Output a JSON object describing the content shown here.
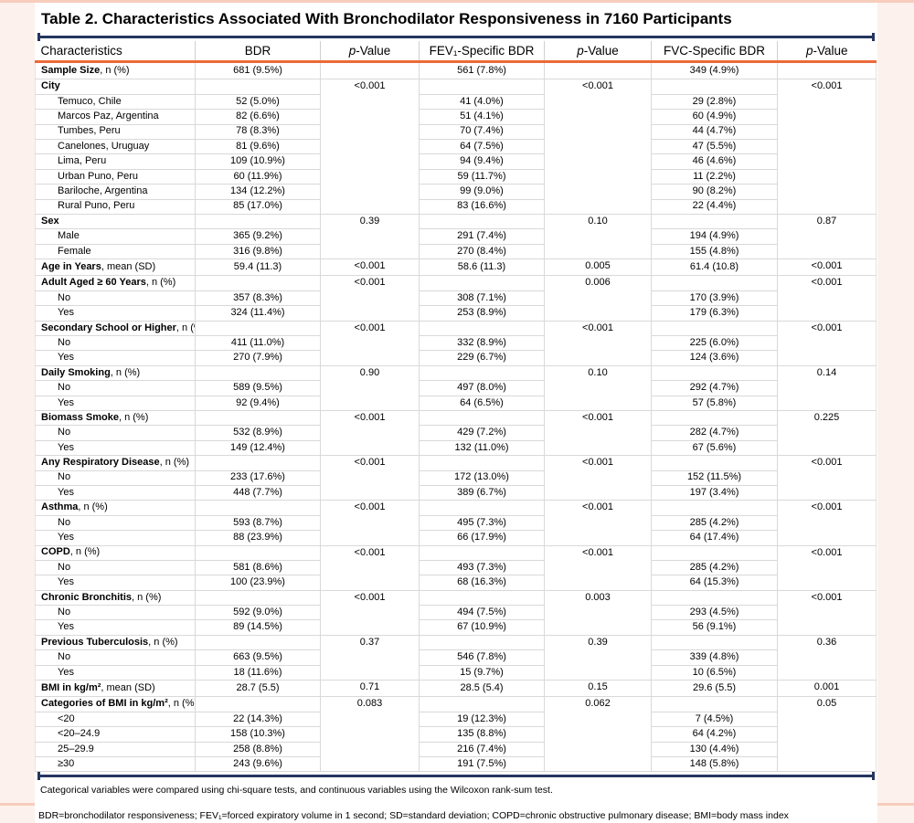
{
  "title": "Table 2. Characteristics Associated With Bronchodilator Responsiveness in 7160 Participants",
  "columns": [
    {
      "label": "Characteristics"
    },
    {
      "label": "BDR"
    },
    {
      "pre_italic": "p",
      "label": "-Value"
    },
    {
      "label": "FEV₁-Specific BDR"
    },
    {
      "pre_italic": "p",
      "label": "-Value"
    },
    {
      "label": "FVC-Specific BDR"
    },
    {
      "pre_italic": "p",
      "label": "-Value"
    }
  ],
  "rows": [
    {
      "label": "Sample Size",
      "suffix": ", n (%)",
      "bold": true,
      "sub": false,
      "bdr": "681 (9.5%)",
      "fev1": "561 (7.8%)",
      "fvc": "349 (4.9%)",
      "p": [
        "",
        "",
        ""
      ],
      "p_span": 1
    },
    {
      "label": "City",
      "suffix": "",
      "bold": true,
      "sub": false,
      "bdr": "",
      "fev1": "",
      "fvc": "",
      "p": [
        "<0.001",
        "<0.001",
        "<0.001"
      ],
      "p_span": 9
    },
    {
      "label": "Temuco, Chile",
      "suffix": "",
      "bold": false,
      "sub": true,
      "bdr": "52 (5.0%)",
      "fev1": "41 (4.0%)",
      "fvc": "29 (2.8%)"
    },
    {
      "label": "Marcos Paz, Argentina",
      "suffix": "",
      "bold": false,
      "sub": true,
      "bdr": "82 (6.6%)",
      "fev1": "51 (4.1%)",
      "fvc": "60 (4.9%)"
    },
    {
      "label": "Tumbes, Peru",
      "suffix": "",
      "bold": false,
      "sub": true,
      "bdr": "78 (8.3%)",
      "fev1": "70 (7.4%)",
      "fvc": "44 (4.7%)"
    },
    {
      "label": "Canelones, Uruguay",
      "suffix": "",
      "bold": false,
      "sub": true,
      "bdr": "81 (9.6%)",
      "fev1": "64 (7.5%)",
      "fvc": "47 (5.5%)"
    },
    {
      "label": "Lima, Peru",
      "suffix": "",
      "bold": false,
      "sub": true,
      "bdr": "109 (10.9%)",
      "fev1": "94 (9.4%)",
      "fvc": "46 (4.6%)"
    },
    {
      "label": "Urban Puno, Peru",
      "suffix": "",
      "bold": false,
      "sub": true,
      "bdr": "60 (11.9%)",
      "fev1": "59 (11.7%)",
      "fvc": "11 (2.2%)"
    },
    {
      "label": "Bariloche, Argentina",
      "suffix": "",
      "bold": false,
      "sub": true,
      "bdr": "134 (12.2%)",
      "fev1": "99 (9.0%)",
      "fvc": "90 (8.2%)"
    },
    {
      "label": "Rural Puno, Peru",
      "suffix": "",
      "bold": false,
      "sub": true,
      "bdr": "85 (17.0%)",
      "fev1": "83 (16.6%)",
      "fvc": "22 (4.4%)"
    },
    {
      "label": "Sex",
      "suffix": "",
      "bold": true,
      "sub": false,
      "bdr": "",
      "fev1": "",
      "fvc": "",
      "p": [
        "0.39",
        "0.10",
        "0.87"
      ],
      "p_span": 3
    },
    {
      "label": "Male",
      "suffix": "",
      "bold": false,
      "sub": true,
      "bdr": "365 (9.2%)",
      "fev1": "291 (7.4%)",
      "fvc": "194 (4.9%)"
    },
    {
      "label": "Female",
      "suffix": "",
      "bold": false,
      "sub": true,
      "bdr": "316 (9.8%)",
      "fev1": "270 (8.4%)",
      "fvc": "155 (4.8%)"
    },
    {
      "label": "Age in Years",
      "suffix": ", mean (SD)",
      "bold": true,
      "sub": false,
      "bdr": "59.4 (11.3)",
      "fev1": "58.6 (11.3)",
      "fvc": "61.4 (10.8)",
      "p": [
        "<0.001",
        "0.005",
        "<0.001"
      ],
      "p_span": 1
    },
    {
      "label": "Adult Aged ≥ 60 Years",
      "suffix": ", n (%)",
      "bold": true,
      "sub": false,
      "bdr": "",
      "fev1": "",
      "fvc": "",
      "p": [
        "<0.001",
        "0.006",
        "<0.001"
      ],
      "p_span": 3
    },
    {
      "label": "No",
      "suffix": "",
      "bold": false,
      "sub": true,
      "bdr": "357 (8.3%)",
      "fev1": "308 (7.1%)",
      "fvc": "170 (3.9%)"
    },
    {
      "label": "Yes",
      "suffix": "",
      "bold": false,
      "sub": true,
      "bdr": "324 (11.4%)",
      "fev1": "253 (8.9%)",
      "fvc": "179 (6.3%)"
    },
    {
      "label": "Secondary School or Higher",
      "suffix": ", n (%)",
      "bold": true,
      "sub": false,
      "bdr": "",
      "fev1": "",
      "fvc": "",
      "p": [
        "<0.001",
        "<0.001",
        "<0.001"
      ],
      "p_span": 3
    },
    {
      "label": "No",
      "suffix": "",
      "bold": false,
      "sub": true,
      "bdr": "411 (11.0%)",
      "fev1": "332 (8.9%)",
      "fvc": "225 (6.0%)"
    },
    {
      "label": "Yes",
      "suffix": "",
      "bold": false,
      "sub": true,
      "bdr": "270 (7.9%)",
      "fev1": "229 (6.7%)",
      "fvc": "124 (3.6%)"
    },
    {
      "label": "Daily Smoking",
      "suffix": ", n (%)",
      "bold": true,
      "sub": false,
      "bdr": "",
      "fev1": "",
      "fvc": "",
      "p": [
        "0.90",
        "0.10",
        "0.14"
      ],
      "p_span": 3
    },
    {
      "label": "No",
      "suffix": "",
      "bold": false,
      "sub": true,
      "bdr": "589 (9.5%)",
      "fev1": "497 (8.0%)",
      "fvc": "292 (4.7%)"
    },
    {
      "label": "Yes",
      "suffix": "",
      "bold": false,
      "sub": true,
      "bdr": "92 (9.4%)",
      "fev1": "64 (6.5%)",
      "fvc": "57 (5.8%)"
    },
    {
      "label": "Biomass Smoke",
      "suffix": ", n (%)",
      "bold": true,
      "sub": false,
      "bdr": "",
      "fev1": "",
      "fvc": "",
      "p": [
        "<0.001",
        "<0.001",
        "0.225"
      ],
      "p_span": 3
    },
    {
      "label": "No",
      "suffix": "",
      "bold": false,
      "sub": true,
      "bdr": "532 (8.9%)",
      "fev1": "429 (7.2%)",
      "fvc": "282 (4.7%)"
    },
    {
      "label": "Yes",
      "suffix": "",
      "bold": false,
      "sub": true,
      "bdr": "149 (12.4%)",
      "fev1": "132 (11.0%)",
      "fvc": "67 (5.6%)"
    },
    {
      "label": "Any Respiratory Disease",
      "suffix": ", n (%)",
      "bold": true,
      "sub": false,
      "bdr": "",
      "fev1": "",
      "fvc": "",
      "p": [
        "<0.001",
        "<0.001",
        "<0.001"
      ],
      "p_span": 3
    },
    {
      "label": "No",
      "suffix": "",
      "bold": false,
      "sub": true,
      "bdr": "233 (17.6%)",
      "fev1": "172 (13.0%)",
      "fvc": "152 (11.5%)"
    },
    {
      "label": "Yes",
      "suffix": "",
      "bold": false,
      "sub": true,
      "bdr": "448 (7.7%)",
      "fev1": "389 (6.7%)",
      "fvc": "197 (3.4%)"
    },
    {
      "label": "Asthma",
      "suffix": ", n (%)",
      "bold": true,
      "sub": false,
      "bdr": "",
      "fev1": "",
      "fvc": "",
      "p": [
        "<0.001",
        "<0.001",
        "<0.001"
      ],
      "p_span": 3
    },
    {
      "label": "No",
      "suffix": "",
      "bold": false,
      "sub": true,
      "bdr": "593 (8.7%)",
      "fev1": "495 (7.3%)",
      "fvc": "285 (4.2%)"
    },
    {
      "label": "Yes",
      "suffix": "",
      "bold": false,
      "sub": true,
      "bdr": "88 (23.9%)",
      "fev1": "66 (17.9%)",
      "fvc": "64 (17.4%)"
    },
    {
      "label": "COPD",
      "suffix": ", n (%)",
      "bold": true,
      "sub": false,
      "bdr": "",
      "fev1": "",
      "fvc": "",
      "p": [
        "<0.001",
        "<0.001",
        "<0.001"
      ],
      "p_span": 3
    },
    {
      "label": "No",
      "suffix": "",
      "bold": false,
      "sub": true,
      "bdr": "581 (8.6%)",
      "fev1": "493 (7.3%)",
      "fvc": "285 (4.2%)"
    },
    {
      "label": "Yes",
      "suffix": "",
      "bold": false,
      "sub": true,
      "bdr": "100 (23.9%)",
      "fev1": "68 (16.3%)",
      "fvc": "64 (15.3%)"
    },
    {
      "label": "Chronic Bronchitis",
      "suffix": ", n (%)",
      "bold": true,
      "sub": false,
      "bdr": "",
      "fev1": "",
      "fvc": "",
      "p": [
        "<0.001",
        "0.003",
        "<0.001"
      ],
      "p_span": 3
    },
    {
      "label": "No",
      "suffix": "",
      "bold": false,
      "sub": true,
      "bdr": "592 (9.0%)",
      "fev1": "494 (7.5%)",
      "fvc": "293 (4.5%)"
    },
    {
      "label": "Yes",
      "suffix": "",
      "bold": false,
      "sub": true,
      "bdr": "89 (14.5%)",
      "fev1": "67 (10.9%)",
      "fvc": "56 (9.1%)"
    },
    {
      "label": "Previous Tuberculosis",
      "suffix": ", n (%)",
      "bold": true,
      "sub": false,
      "bdr": "",
      "fev1": "",
      "fvc": "",
      "p": [
        "0.37",
        "0.39",
        "0.36"
      ],
      "p_span": 3
    },
    {
      "label": "No",
      "suffix": "",
      "bold": false,
      "sub": true,
      "bdr": "663 (9.5%)",
      "fev1": "546 (7.8%)",
      "fvc": "339 (4.8%)"
    },
    {
      "label": "Yes",
      "suffix": "",
      "bold": false,
      "sub": true,
      "bdr": "18 (11.6%)",
      "fev1": "15 (9.7%)",
      "fvc": "10 (6.5%)"
    },
    {
      "label": "BMI in kg/m²",
      "suffix": ", mean (SD)",
      "bold": true,
      "sub": false,
      "bdr": "28.7 (5.5)",
      "fev1": "28.5 (5.4)",
      "fvc": "29.6 (5.5)",
      "p": [
        "0.71",
        "0.15",
        "0.001"
      ],
      "p_span": 1
    },
    {
      "label": "Categories of BMI in kg/m²",
      "suffix": ", n (%)",
      "bold": true,
      "sub": false,
      "bdr": "",
      "fev1": "",
      "fvc": "",
      "p": [
        "0.083",
        "0.062",
        "0.05"
      ],
      "p_span": 5
    },
    {
      "label": "<20",
      "suffix": "",
      "bold": false,
      "sub": true,
      "bdr": "22 (14.3%)",
      "fev1": "19 (12.3%)",
      "fvc": "7 (4.5%)"
    },
    {
      "label": "<20–24.9",
      "suffix": "",
      "bold": false,
      "sub": true,
      "bdr": "158 (10.3%)",
      "fev1": "135 (8.8%)",
      "fvc": "64 (4.2%)"
    },
    {
      "label": "25–29.9",
      "suffix": "",
      "bold": false,
      "sub": true,
      "bdr": "258 (8.8%)",
      "fev1": "216 (7.4%)",
      "fvc": "130 (4.4%)"
    },
    {
      "label": "≥30",
      "suffix": "",
      "bold": false,
      "sub": true,
      "bdr": "243 (9.6%)",
      "fev1": "191 (7.5%)",
      "fvc": "148 (5.8%)"
    }
  ],
  "footnotes": [
    "Categorical variables were compared using chi-square tests, and continuous variables using the Wilcoxon rank-sum test.",
    "BDR=bronchodilator responsiveness; FEV₁=forced expiratory volume in 1 second; SD=standard deviation; COPD=chronic obstructive pulmonary disease; BMI=body mass index"
  ],
  "colors": {
    "navy_rule": "#24365f",
    "orange_rule": "#ea6a38",
    "page_background": "#fcf1ec",
    "salmon_border": "#f7cdbd",
    "grid_line": "#d9d9d9"
  }
}
